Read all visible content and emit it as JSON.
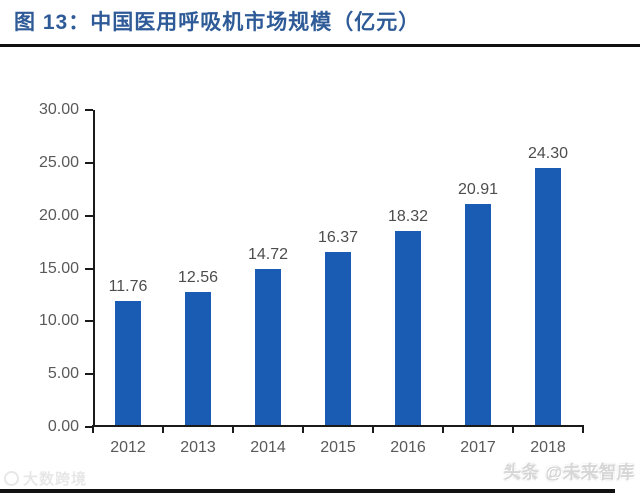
{
  "header": {
    "figure_label": "图 13：",
    "title": "中国医用呼吸机市场规模（亿元）"
  },
  "chart_data": {
    "type": "bar",
    "title": "中国医用呼吸机市场规模（亿元）",
    "xlabel": "",
    "ylabel": "",
    "categories": [
      "2012",
      "2013",
      "2014",
      "2015",
      "2016",
      "2017",
      "2018"
    ],
    "values": [
      11.76,
      12.56,
      14.72,
      16.37,
      18.32,
      20.91,
      24.3
    ],
    "value_labels": [
      "11.76",
      "12.56",
      "14.72",
      "16.37",
      "18.32",
      "20.91",
      "24.30"
    ],
    "ylim": [
      0,
      30
    ],
    "ytick_step": 5,
    "ytick_labels_top_to_bottom": [
      "30.00",
      "25.00",
      "20.00",
      "15.00",
      "10.00",
      "5.00",
      "0.00"
    ],
    "grid": false,
    "legend": "none",
    "bar_color": "#1a5cb4",
    "axis_color": "#1a1a1a",
    "ytick_label_color": "#595959",
    "xtick_label_color": "#595959",
    "data_label_color": "#4d4d4d"
  },
  "colors": {
    "title_blue": "#2e5b97",
    "rule_black": "#111111",
    "background": "#ffffff"
  },
  "watermarks": {
    "bottom_left": "大数跨境",
    "bottom_right": "头条 @未来智库"
  }
}
